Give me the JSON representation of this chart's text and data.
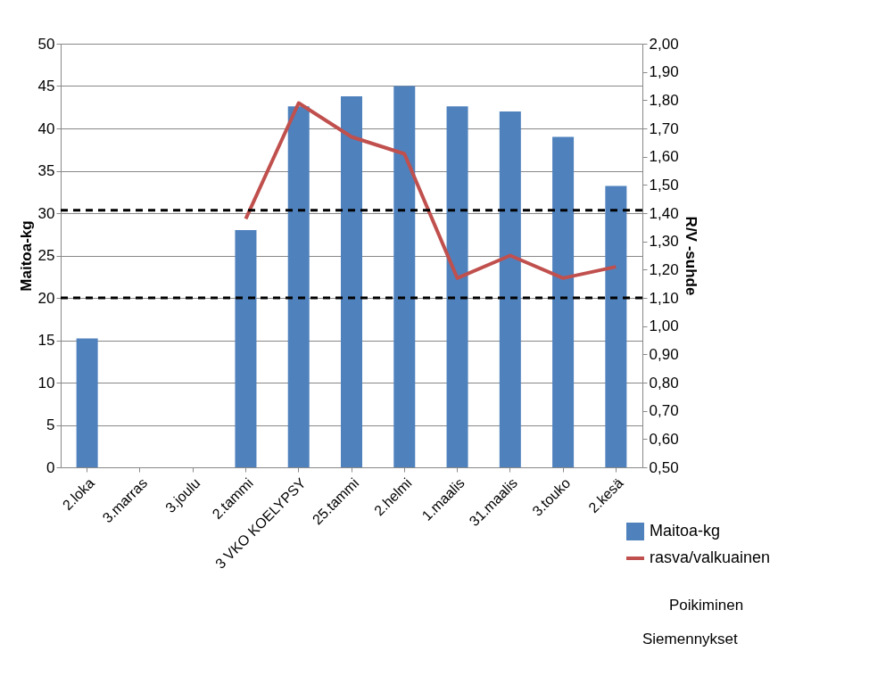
{
  "chart_data": {
    "type": "bar",
    "categories": [
      "2.loka",
      "3.marras",
      "3.joulu",
      "2.tammi",
      "3 VKO KOELYPSY",
      "25.tammi",
      "2.helmi",
      "1.maalis",
      "31.maalis",
      "3.touko",
      "2.kesä"
    ],
    "series": [
      {
        "name": "Maitoa-kg",
        "color": "#4f81bd",
        "values": [
          15.2,
          null,
          null,
          28,
          42.6,
          43.8,
          45,
          42.6,
          42,
          39,
          33.2
        ]
      },
      {
        "name": "rasva/valkuainen",
        "type": "line",
        "axis": "y2",
        "color": "#c0504d",
        "values": [
          null,
          null,
          null,
          1.38,
          1.79,
          1.67,
          1.61,
          1.17,
          1.25,
          1.17,
          1.21
        ]
      }
    ],
    "ylabel": "Maitoa-kg",
    "y2label": "R/V -suhde",
    "ylim": [
      0,
      50
    ],
    "yticks": [
      0,
      5,
      10,
      15,
      20,
      25,
      30,
      35,
      40,
      45,
      50
    ],
    "y2lim": [
      0.5,
      2.0
    ],
    "y2ticks": [
      {
        "value": 0.5,
        "label": "0,50"
      },
      {
        "value": 0.6,
        "label": "0,60"
      },
      {
        "value": 0.7,
        "label": "0,70"
      },
      {
        "value": 0.8,
        "label": "0,80"
      },
      {
        "value": 0.9,
        "label": "0,90"
      },
      {
        "value": 1.0,
        "label": "1,00"
      },
      {
        "value": 1.1,
        "label": "1,10"
      },
      {
        "value": 1.2,
        "label": "1,20"
      },
      {
        "value": 1.3,
        "label": "1,30"
      },
      {
        "value": 1.4,
        "label": "1,40"
      },
      {
        "value": 1.5,
        "label": "1,50"
      },
      {
        "value": 1.6,
        "label": "1,60"
      },
      {
        "value": 1.7,
        "label": "1,70"
      },
      {
        "value": 1.8,
        "label": "1,80"
      },
      {
        "value": 1.9,
        "label": "1,90"
      },
      {
        "value": 2.0,
        "label": "2,00"
      }
    ],
    "ref_lines": [
      {
        "axis": "y2",
        "value": 1.41,
        "color": "#000000",
        "line_style": "dashed"
      },
      {
        "axis": "y2",
        "value": 1.1,
        "color": "#000000",
        "line_style": "dashed"
      }
    ],
    "annotations": [
      "Poikiminen",
      "Siemennykset"
    ],
    "grid": "y",
    "legend": "bottom right",
    "marker": "none",
    "line_style": "solid"
  }
}
